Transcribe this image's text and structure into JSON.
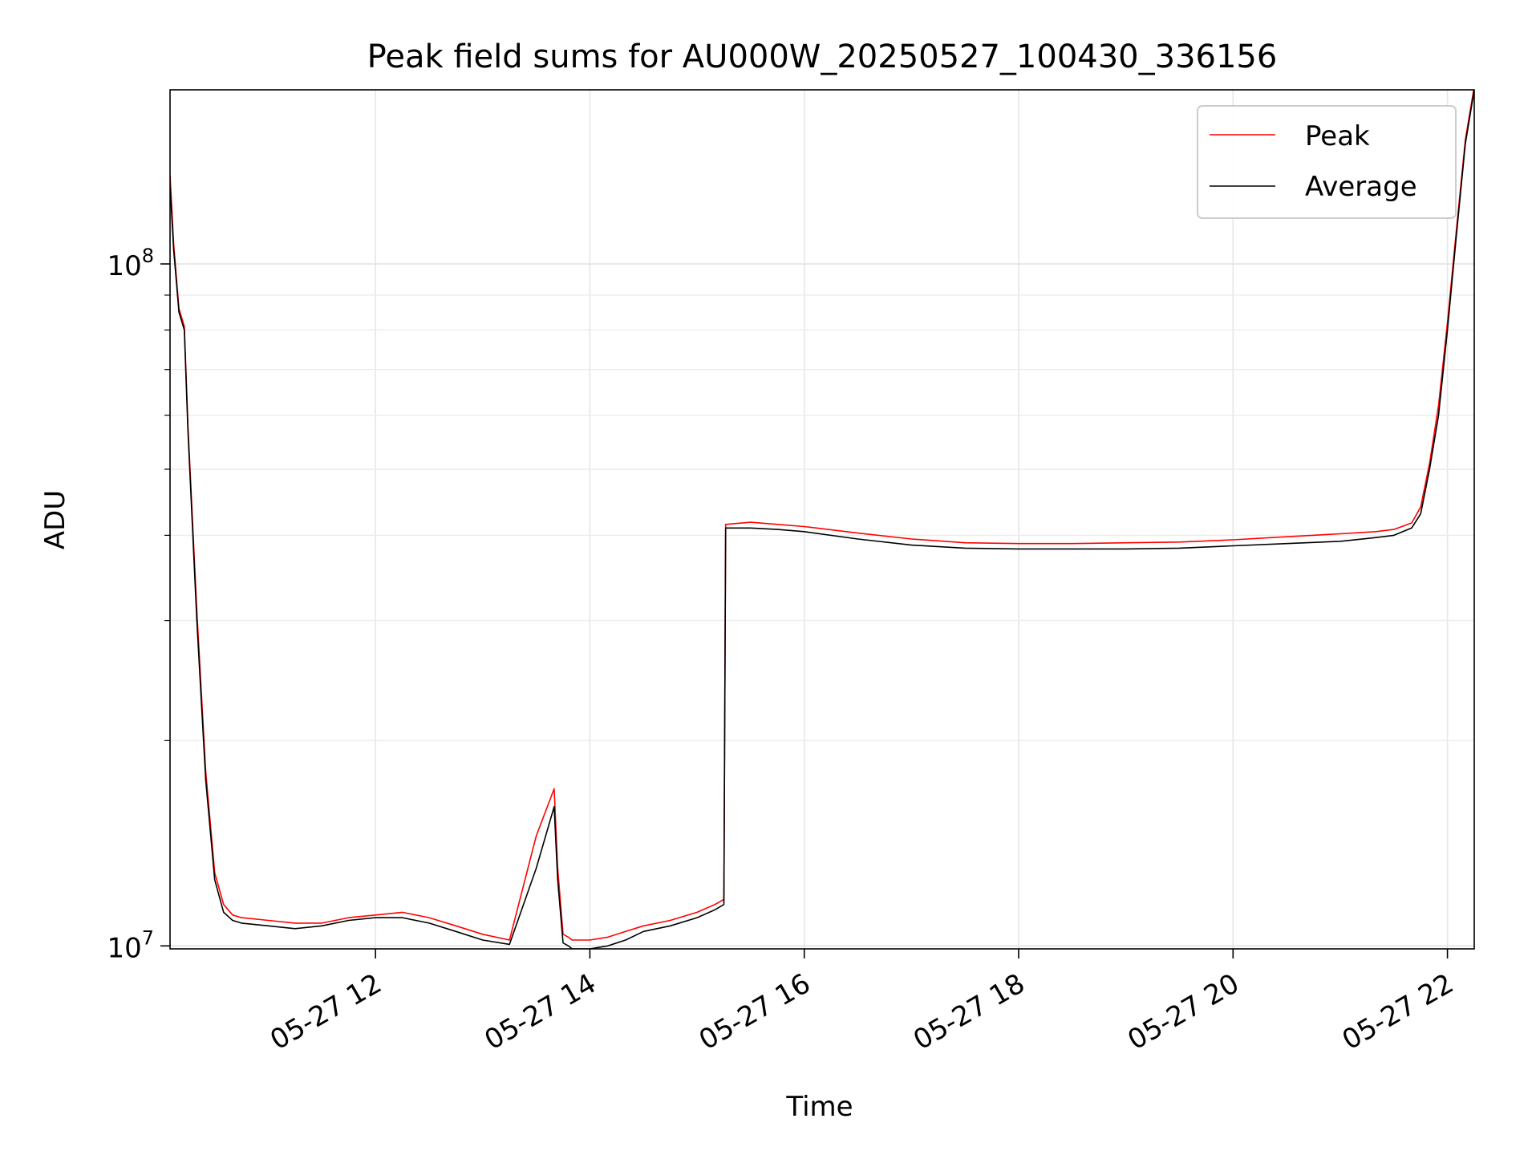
{
  "chart_data": {
    "type": "line",
    "title": "Peak field sums for AU000W_20250527_100430_336156",
    "xlabel": "Time",
    "ylabel": "ADU",
    "y_scale": "log",
    "xlim": [
      "05-27 10:05",
      "05-27 22:15"
    ],
    "ylim": [
      9900000,
      180000000
    ],
    "x_ticks": [
      "05-27 12",
      "05-27 14",
      "05-27 16",
      "05-27 18",
      "05-27 20",
      "05-27 22"
    ],
    "x_tick_hours": [
      12,
      14,
      16,
      18,
      20,
      22
    ],
    "y_major_ticks": [
      {
        "value": 10000000,
        "base": "10",
        "exp": "7"
      },
      {
        "value": 100000000,
        "base": "10",
        "exp": "8"
      }
    ],
    "y_minor_ticks": [
      20000000,
      30000000,
      40000000,
      50000000,
      60000000,
      70000000,
      80000000,
      90000000
    ],
    "grid": true,
    "legend_position": "top-right",
    "series": [
      {
        "name": "Average",
        "color": "#000000",
        "x": [
          "10:05",
          "10:07",
          "10:10",
          "10:13",
          "10:15",
          "10:20",
          "10:25",
          "10:30",
          "10:35",
          "10:40",
          "10:45",
          "11:00",
          "11:15",
          "11:30",
          "11:45",
          "12:00",
          "12:15",
          "12:30",
          "12:45",
          "13:00",
          "13:15",
          "13:30",
          "13:40",
          "13:42",
          "13:45",
          "13:48",
          "13:50",
          "14:00",
          "14:10",
          "14:20",
          "14:30",
          "14:45",
          "15:00",
          "15:10",
          "15:15",
          "15:16",
          "15:30",
          "15:45",
          "16:00",
          "16:30",
          "17:00",
          "17:30",
          "18:00",
          "18:30",
          "19:00",
          "19:30",
          "20:00",
          "20:30",
          "21:00",
          "21:20",
          "21:30",
          "21:40",
          "21:45",
          "21:50",
          "21:55",
          "22:00",
          "22:05",
          "22:10",
          "22:15"
        ],
        "y": [
          130000000,
          105000000,
          85000000,
          80000000,
          57000000,
          30000000,
          17500000,
          12500000,
          11200000,
          10900000,
          10800000,
          10700000,
          10600000,
          10700000,
          10900000,
          11000000,
          11000000,
          10800000,
          10500000,
          10200000,
          10050000,
          13000000,
          16000000,
          12500000,
          10100000,
          10000000,
          9900000,
          9900000,
          10000000,
          10200000,
          10500000,
          10700000,
          11000000,
          11300000,
          11500000,
          41000000,
          41000000,
          40800000,
          40500000,
          39500000,
          38700000,
          38300000,
          38200000,
          38200000,
          38200000,
          38300000,
          38600000,
          38900000,
          39200000,
          39700000,
          40000000,
          41000000,
          43000000,
          50000000,
          60000000,
          80000000,
          110000000,
          150000000,
          180000000
        ]
      },
      {
        "name": "Peak",
        "color": "#ff0000",
        "x": [
          "10:05",
          "10:07",
          "10:10",
          "10:13",
          "10:15",
          "10:20",
          "10:25",
          "10:30",
          "10:35",
          "10:40",
          "10:45",
          "11:00",
          "11:15",
          "11:30",
          "11:45",
          "12:00",
          "12:15",
          "12:30",
          "12:45",
          "13:00",
          "13:15",
          "13:30",
          "13:40",
          "13:42",
          "13:45",
          "13:48",
          "13:50",
          "14:00",
          "14:10",
          "14:20",
          "14:30",
          "14:45",
          "15:00",
          "15:10",
          "15:15",
          "15:16",
          "15:30",
          "15:45",
          "16:00",
          "16:30",
          "17:00",
          "17:30",
          "18:00",
          "18:30",
          "19:00",
          "19:30",
          "20:00",
          "20:30",
          "21:00",
          "21:20",
          "21:30",
          "21:40",
          "21:45",
          "21:50",
          "21:55",
          "22:00",
          "22:05",
          "22:10",
          "22:15"
        ],
        "y": [
          135000000,
          107000000,
          86000000,
          81000000,
          58000000,
          31000000,
          18000000,
          12800000,
          11500000,
          11100000,
          11000000,
          10900000,
          10800000,
          10800000,
          11000000,
          11100000,
          11200000,
          11000000,
          10700000,
          10400000,
          10200000,
          14500000,
          17000000,
          13000000,
          10400000,
          10300000,
          10200000,
          10200000,
          10300000,
          10500000,
          10700000,
          10900000,
          11200000,
          11500000,
          11700000,
          41500000,
          41800000,
          41500000,
          41200000,
          40300000,
          39500000,
          39000000,
          38900000,
          38900000,
          39000000,
          39100000,
          39400000,
          39800000,
          40200000,
          40500000,
          40800000,
          41700000,
          44000000,
          51000000,
          62000000,
          82000000,
          112000000,
          152000000,
          182000000
        ]
      }
    ]
  }
}
